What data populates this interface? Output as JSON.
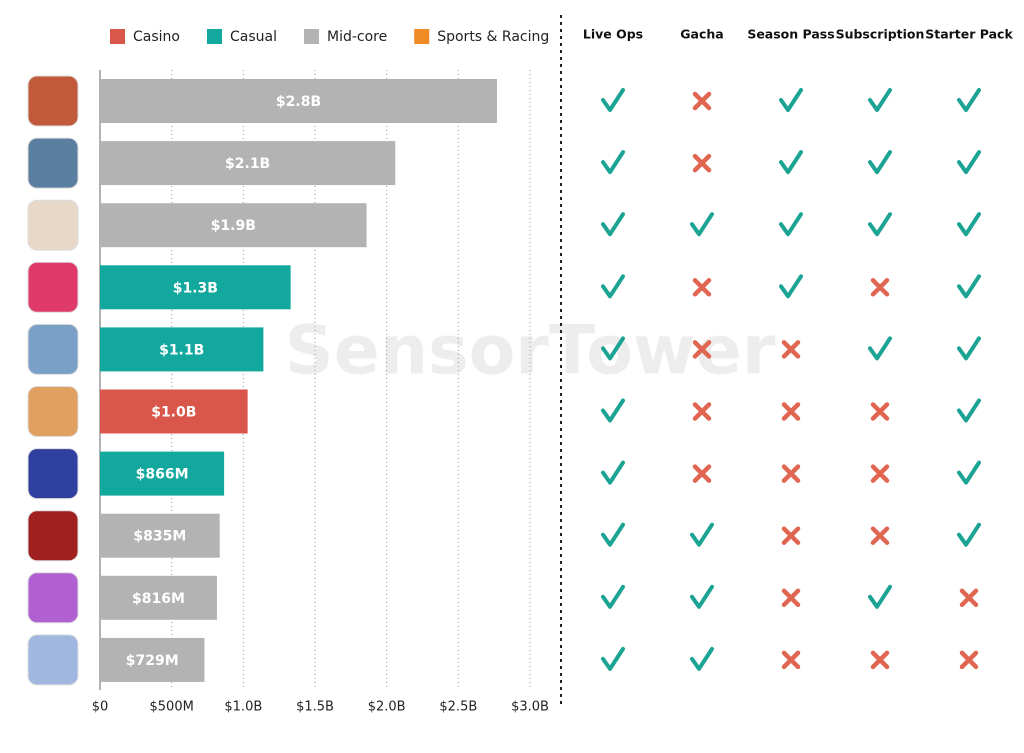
{
  "chart_data": {
    "type": "bar",
    "orientation": "horizontal",
    "categories": [
      null,
      null,
      null,
      null,
      null,
      null,
      null,
      null,
      null,
      null
    ],
    "values": [
      2770000000,
      2060000000,
      1860000000,
      1330000000,
      1140000000,
      1030000000,
      866000000,
      835000000,
      816000000,
      729000000
    ],
    "value_labels": [
      "$2.8B",
      "$2.1B",
      "$1.9B",
      "$1.3B",
      "$1.1B",
      "$1.0B",
      "$866M",
      "$835M",
      "$816M",
      "$729M"
    ],
    "colors": [
      "#b3b3b3",
      "#b3b3b3",
      "#b3b3b3",
      "#13a89e",
      "#13a89e",
      "#d9574a",
      "#13a89e",
      "#b3b3b3",
      "#b3b3b3",
      "#b3b3b3"
    ],
    "legend": [
      {
        "name": "Casino",
        "color": "#d9574a"
      },
      {
        "name": "Casual",
        "color": "#13a89e"
      },
      {
        "name": "Mid-core",
        "color": "#b3b3b3"
      },
      {
        "name": "Sports & Racing",
        "color": "#f08a24"
      }
    ],
    "xlim": [
      0,
      3000000000
    ],
    "xticks": [
      {
        "value": 0,
        "label": "$0"
      },
      {
        "value": 500000000,
        "label": "$500M"
      },
      {
        "value": 1000000000,
        "label": "$1.0B"
      },
      {
        "value": 1500000000,
        "label": "$1.5B"
      },
      {
        "value": 2000000000,
        "label": "$2.0B"
      },
      {
        "value": 2500000000,
        "label": "$2.5B"
      },
      {
        "value": 3000000000,
        "label": "$3.0B"
      }
    ],
    "grid": true,
    "watermark": "SensorTower",
    "features": {
      "columns": [
        "Live Ops",
        "Gacha",
        "Season Pass",
        "Subscription",
        "Starter Pack"
      ],
      "rows": [
        [
          true,
          false,
          true,
          true,
          true
        ],
        [
          true,
          false,
          true,
          true,
          true
        ],
        [
          true,
          true,
          true,
          true,
          true
        ],
        [
          true,
          false,
          true,
          false,
          true
        ],
        [
          true,
          false,
          false,
          true,
          true
        ],
        [
          true,
          false,
          false,
          false,
          true
        ],
        [
          true,
          false,
          false,
          false,
          true
        ],
        [
          true,
          true,
          false,
          false,
          true
        ],
        [
          true,
          true,
          false,
          true,
          false
        ],
        [
          true,
          true,
          false,
          false,
          false
        ]
      ]
    }
  }
}
